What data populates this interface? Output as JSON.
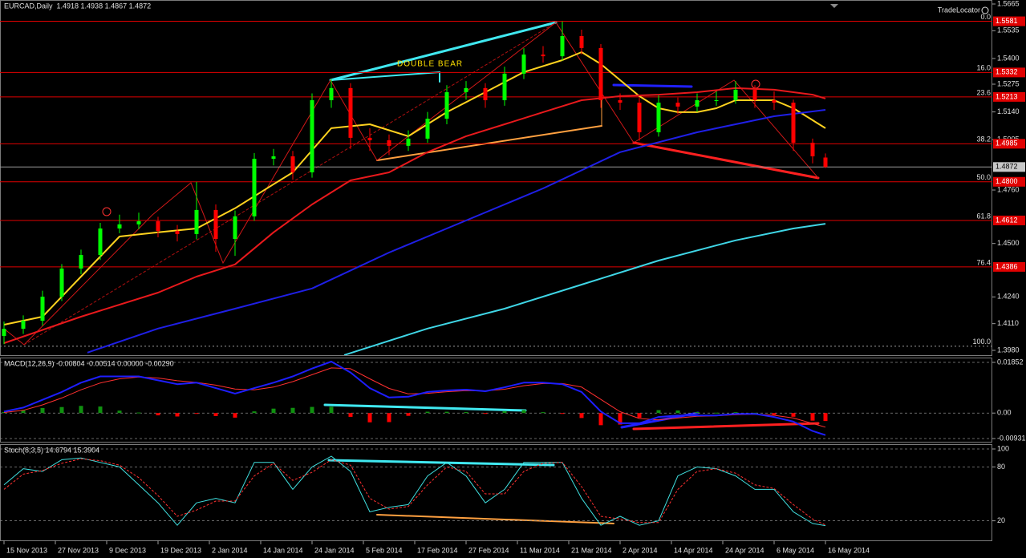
{
  "chart_data": [
    {
      "type": "candlestick",
      "title": "EURCAD,Daily",
      "subtitle": "1.4918 1.4938 1.4867 1.4872",
      "annotation": "DOUBLE BEAR",
      "watermark": "TradeLocator",
      "up_color": "#00ff00",
      "down_color": "#ff0000",
      "grid": false,
      "xlim": [
        -0.625,
        154
      ],
      "ylim": [
        1.398,
        1.5665
      ],
      "yticks": [
        1.5665,
        1.5535,
        {
          "value": 1.54,
          "label": "1.5400"
        },
        1.5275,
        {
          "value": 1.514,
          "label": "1.5140"
        },
        1.5005,
        {
          "value": 1.476,
          "label": "1.4760"
        },
        {
          "value": 1.45,
          "label": "1.4500"
        },
        {
          "value": 1.424,
          "label": "1.4240"
        },
        {
          "value": 1.411,
          "label": "1.4110"
        },
        {
          "value": 1.398,
          "label": "1.3980"
        }
      ],
      "x": [
        0,
        3,
        6,
        9,
        12,
        15,
        18,
        21,
        24,
        27,
        30,
        33,
        36,
        39,
        42,
        45,
        48,
        51,
        54,
        57,
        60,
        63,
        66,
        69,
        72,
        75,
        78,
        81,
        84,
        87,
        90,
        93,
        96,
        99,
        102,
        105,
        108,
        111,
        114,
        117,
        120,
        123,
        126,
        128
      ],
      "open": [
        1.405,
        1.4085,
        1.4124,
        1.4241,
        1.4378,
        1.4444,
        1.4573,
        1.4593,
        1.4608,
        1.4561,
        1.4546,
        1.4663,
        1.4522,
        1.4632,
        1.4912,
        1.4924,
        1.4846,
        1.5197,
        1.5256,
        1.5014,
        1.5002,
        1.4975,
        1.501,
        1.5107,
        1.5236,
        1.5256,
        1.5197,
        1.5326,
        1.5419,
        1.5411,
        1.5509,
        1.5451,
        1.5197,
        1.5185,
        1.5041,
        1.5185,
        1.5166,
        1.5197,
        1.5197,
        1.5248,
        1.5197,
        1.5185,
        1.499,
        1.4918
      ],
      "high": [
        1.412,
        1.415,
        1.427,
        1.44,
        1.447,
        1.46,
        1.464,
        1.465,
        1.463,
        1.459,
        1.48,
        1.469,
        1.466,
        1.494,
        1.496,
        1.495,
        1.523,
        1.53,
        1.528,
        1.506,
        1.503,
        1.505,
        1.514,
        1.527,
        1.529,
        1.528,
        1.536,
        1.545,
        1.546,
        1.558,
        1.554,
        1.547,
        1.523,
        1.521,
        1.522,
        1.521,
        1.523,
        1.524,
        1.529,
        1.527,
        1.524,
        1.52,
        1.501,
        1.4938
      ],
      "low": [
        1.401,
        1.406,
        1.41,
        1.422,
        1.435,
        1.442,
        1.455,
        1.457,
        1.453,
        1.451,
        1.452,
        1.446,
        1.444,
        1.461,
        1.488,
        1.481,
        1.482,
        1.516,
        1.496,
        1.495,
        1.493,
        1.495,
        1.499,
        1.508,
        1.52,
        1.516,
        1.517,
        1.53,
        1.538,
        1.539,
        1.542,
        1.516,
        1.515,
        1.5,
        1.502,
        1.513,
        1.514,
        1.517,
        1.518,
        1.516,
        1.515,
        1.495,
        1.489,
        1.4867
      ],
      "close": [
        1.4085,
        1.4124,
        1.4241,
        1.4378,
        1.4444,
        1.4573,
        1.4593,
        1.4608,
        1.4561,
        1.4546,
        1.4663,
        1.4522,
        1.4632,
        1.4912,
        1.4924,
        1.4846,
        1.5197,
        1.5256,
        1.5014,
        1.5002,
        1.4975,
        1.501,
        1.5107,
        1.5236,
        1.5256,
        1.5197,
        1.5326,
        1.5419,
        1.5411,
        1.5509,
        1.5451,
        1.5197,
        1.5185,
        1.5041,
        1.5185,
        1.5166,
        1.5197,
        1.5197,
        1.5248,
        1.5197,
        1.5185,
        1.499,
        1.4924,
        1.4872
      ],
      "averages": [
        {
          "color": "#ffd21f",
          "x": [
            0,
            6,
            12,
            18,
            24,
            30,
            36,
            42,
            45,
            51,
            57,
            63,
            69,
            75,
            81,
            87,
            90,
            93,
            96,
            99,
            102,
            105,
            108,
            111,
            114,
            117,
            120,
            123,
            126,
            128
          ],
          "values": [
            1.4105,
            1.4144,
            1.4339,
            1.4534,
            1.4554,
            1.4573,
            1.4671,
            1.4788,
            1.4846,
            1.5061,
            1.508,
            1.5022,
            1.5139,
            1.5236,
            1.5334,
            1.5392,
            1.5431,
            1.5373,
            1.5295,
            1.5217,
            1.5158,
            1.5139,
            1.5139,
            1.5158,
            1.5197,
            1.5197,
            1.5197,
            1.5158,
            1.51,
            1.5061
          ]
        },
        {
          "color": "#e8191c",
          "x": [
            0,
            12,
            24,
            30,
            36,
            42,
            48,
            54,
            60,
            66,
            72,
            78,
            84,
            90,
            96,
            102,
            108,
            114,
            120,
            126,
            128
          ],
          "values": [
            1.4015,
            1.4144,
            1.4261,
            1.4339,
            1.4398,
            1.4554,
            1.469,
            1.4807,
            1.4846,
            1.4944,
            1.5022,
            1.508,
            1.5139,
            1.5197,
            1.5217,
            1.5224,
            1.5236,
            1.5256,
            1.5248,
            1.5224,
            1.5205
          ]
        },
        {
          "color": "#1f1fe6",
          "x": [
            13,
            24,
            36,
            48,
            60,
            72,
            84,
            96,
            108,
            120,
            128
          ],
          "values": [
            1.3969,
            1.4086,
            1.4183,
            1.4281,
            1.4456,
            1.4612,
            1.4768,
            1.4944,
            1.5041,
            1.5119,
            1.515
          ]
        },
        {
          "color": "#3fd6e6",
          "x": [
            53,
            66,
            78,
            90,
            102,
            114,
            123,
            128
          ],
          "values": [
            1.3957,
            1.4086,
            1.4183,
            1.43,
            1.4417,
            1.4515,
            1.4573,
            1.4596
          ]
        }
      ],
      "level_color": "#e00000",
      "levels": [
        {
          "value": 1.5581,
          "label": "1.5581",
          "fib": "0.0"
        },
        {
          "value": 1.5332,
          "label": "1.5332",
          "fib": "16.0"
        },
        {
          "value": 1.5213,
          "label": "1.5213",
          "fib": "23.6"
        },
        {
          "value": 1.4985,
          "label": "1.4985",
          "fib": "38.2"
        },
        {
          "value": 1.48,
          "label": "1.4800",
          "fib": "50.0"
        },
        {
          "value": 1.4612,
          "label": "1.4612",
          "fib": "61.8"
        },
        {
          "value": 1.4386,
          "label": "1.4386",
          "fib": "76.4"
        },
        {
          "value": 1.4,
          "fib": "100.0"
        }
      ],
      "last_price": {
        "value": 1.4872,
        "label": "1.4872"
      }
    },
    {
      "type": "macd",
      "title": "MACD(12,26,9) -0.00804 -0.00514 0.00000 -0.00290",
      "xlim": [
        -0.625,
        154
      ],
      "ylim": [
        -0.00931,
        0.01852
      ],
      "grid": true,
      "yticks": [
        0.01852,
        {
          "value": 0,
          "label": "0.00"
        },
        -0.00931
      ],
      "x": [
        0,
        3,
        6,
        9,
        12,
        15,
        18,
        21,
        24,
        27,
        30,
        33,
        36,
        39,
        42,
        45,
        48,
        51,
        54,
        57,
        60,
        63,
        66,
        69,
        72,
        75,
        78,
        81,
        84,
        87,
        90,
        93,
        96,
        99,
        102,
        105,
        108,
        111,
        114,
        117,
        120,
        123,
        126,
        128
      ],
      "macd_color": "#1e1eff",
      "signal_color": "#ff3030",
      "up_color": "#109010",
      "down_color": "#ff0000",
      "macd": [
        0.00057,
        0.002,
        0.00485,
        0.0077,
        0.01112,
        0.0134,
        0.0134,
        0.0134,
        0.01197,
        0.01055,
        0.01112,
        0.00912,
        0.00713,
        0.00912,
        0.01112,
        0.0134,
        0.01625,
        0.0188,
        0.01482,
        0.00912,
        0.0057,
        0.00599,
        0.0077,
        0.00827,
        0.00855,
        0.00798,
        0.00941,
        0.01112,
        0.01112,
        0.01055,
        0.0077,
        0.00057,
        -0.00371,
        -0.00371,
        -0.00143,
        -0.00086,
        -0.00086,
        -0.00086,
        -0.00029,
        -0.00029,
        -0.00143,
        -0.00314,
        -0.00656,
        -0.00804
      ],
      "signal": [
        0.0002,
        0.001,
        0.003,
        0.0055,
        0.0085,
        0.011,
        0.0125,
        0.0132,
        0.0128,
        0.0118,
        0.0112,
        0.0102,
        0.0088,
        0.0085,
        0.0095,
        0.0115,
        0.014,
        0.0165,
        0.0162,
        0.0125,
        0.009,
        0.007,
        0.0072,
        0.0078,
        0.0082,
        0.0081,
        0.0087,
        0.01,
        0.0108,
        0.0108,
        0.0095,
        0.005,
        0.0005,
        -0.002,
        -0.0025,
        -0.0018,
        -0.0012,
        -0.001,
        -0.0006,
        -0.0004,
        -0.0008,
        -0.0018,
        -0.0038,
        -0.00514
      ],
      "histogram": [
        0.00037,
        0.001,
        0.00185,
        0.0022,
        0.00262,
        0.0024,
        0.0009,
        0.0002,
        -0.00083,
        -0.00125,
        -8e-05,
        -0.00108,
        -0.00167,
        0.00062,
        0.00162,
        0.0019,
        0.00225,
        0.0023,
        -0.00138,
        -0.00338,
        -0.0033,
        -0.00101,
        0.0005,
        0.00047,
        0.00035,
        -0.00012,
        0.00071,
        0.00112,
        0.00032,
        -0.00025,
        -0.0018,
        -0.00443,
        -0.00421,
        -0.00171,
        0.00107,
        0.00094,
        0.00034,
        0.00014,
        0.00031,
        0.00011,
        -0.00063,
        -0.00134,
        -0.00276,
        -0.0029
      ]
    },
    {
      "type": "stochastic",
      "title": "Stoch(8,3,5) 14.6794 15.3904",
      "xlim": [
        -0.625,
        154
      ],
      "ylim": [
        0,
        100
      ],
      "grid": true,
      "yticks": [
        100,
        80,
        20
      ],
      "xticks": [
        {
          "value": 0,
          "label": "15 Nov 2013"
        },
        {
          "value": 8,
          "label": "27 Nov 2013"
        },
        {
          "value": 16,
          "label": "9 Dec 2013"
        },
        {
          "value": 24,
          "label": "19 Dec 2013"
        },
        {
          "value": 32,
          "label": "2 Jan 2014"
        },
        {
          "value": 40,
          "label": "14 Jan 2014"
        },
        {
          "value": 48,
          "label": "24 Jan 2014"
        },
        {
          "value": 56,
          "label": "5 Feb 2014"
        },
        {
          "value": 64,
          "label": "17 Feb 2014"
        },
        {
          "value": 72,
          "label": "27 Feb 2014"
        },
        {
          "value": 80,
          "label": "11 Mar 2014"
        },
        {
          "value": 88,
          "label": "21 Mar 2014"
        },
        {
          "value": 96,
          "label": "2 Apr 2014"
        },
        {
          "value": 104,
          "label": "14 Apr 2014"
        },
        {
          "value": 112,
          "label": "24 Apr 2014"
        },
        {
          "value": 120,
          "label": "6 May 2014"
        },
        {
          "value": 128,
          "label": "16 May 2014"
        }
      ],
      "x": [
        0,
        3,
        6,
        9,
        12,
        15,
        18,
        21,
        24,
        27,
        30,
        33,
        36,
        39,
        42,
        45,
        48,
        51,
        54,
        57,
        60,
        63,
        66,
        69,
        72,
        75,
        78,
        81,
        84,
        87,
        90,
        93,
        96,
        99,
        102,
        105,
        108,
        111,
        114,
        117,
        120,
        123,
        126,
        128
      ],
      "main_color": "#40e0e0",
      "signal_color": "#ff3030",
      "main": [
        60,
        78,
        75,
        88,
        90,
        85,
        80,
        60,
        40,
        15,
        40,
        45,
        40,
        85,
        85,
        55,
        80,
        92,
        75,
        30,
        35,
        38,
        70,
        85,
        70,
        40,
        55,
        85,
        85,
        85,
        45,
        15,
        25,
        15,
        20,
        70,
        80,
        78,
        70,
        55,
        55,
        30,
        17,
        14.6794
      ],
      "signal": [
        55,
        72,
        76,
        84,
        89,
        87,
        82,
        68,
        48,
        25,
        32,
        42,
        42,
        70,
        84,
        65,
        74,
        88,
        82,
        45,
        33,
        36,
        60,
        80,
        75,
        50,
        50,
        75,
        84,
        85,
        58,
        25,
        22,
        18,
        18,
        55,
        75,
        78,
        73,
        60,
        56,
        38,
        22,
        15.3904
      ]
    }
  ]
}
